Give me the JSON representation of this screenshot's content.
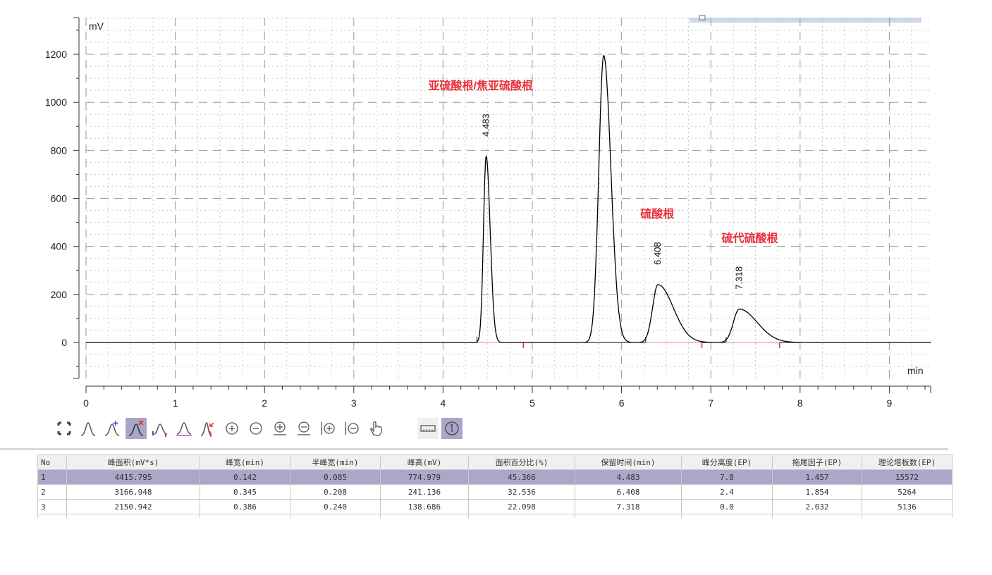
{
  "chart_data": {
    "type": "line",
    "xlabel": "min",
    "ylabel": "mV",
    "xlim": [
      0,
      9.47
    ],
    "ylim": [
      -150,
      1350
    ],
    "xticks": [
      0,
      1,
      2,
      3,
      4,
      5,
      6,
      7,
      8,
      9
    ],
    "yticks": [
      0,
      200,
      400,
      600,
      800,
      1000,
      1200
    ],
    "grid": true,
    "line_color": "#000000",
    "annotation_color": "#e8303a",
    "peaks": [
      {
        "rt": 4.483,
        "height": 775,
        "start": 4.38,
        "end": 4.9,
        "label": "4.483",
        "name": "亚硫酸根/焦亚硫酸根",
        "sl": 0.03,
        "sr": 0.045
      },
      {
        "rt": 5.8,
        "height": 1195,
        "sl": 0.055,
        "sr": 0.08
      },
      {
        "rt": 6.408,
        "height": 241,
        "start": 6.27,
        "end": 6.9,
        "label": "6.408",
        "name": "硫酸根",
        "sl": 0.06,
        "sr": 0.17
      },
      {
        "rt": 7.318,
        "height": 139,
        "start": 7.17,
        "end": 7.77,
        "label": "7.318",
        "name": "硫代硫酸根",
        "sl": 0.065,
        "sr": 0.2
      }
    ]
  },
  "toolbar": {
    "icons": [
      "fit-view-icon",
      "peak-icon",
      "add-peak-icon",
      "delete-peak-icon",
      "split-peak-icon",
      "baseline-icon",
      "manual-integration-icon",
      "zoom-in-icon",
      "zoom-out-icon",
      "zoom-in-y-icon",
      "zoom-out-y-icon",
      "zoom-in-x-icon",
      "zoom-out-x-icon",
      "pan-hand-icon",
      "ruler-icon",
      "number-one-icon"
    ]
  },
  "table": {
    "headers": [
      "No",
      "峰面积(mV*s)",
      "峰宽(min)",
      "半峰宽(min)",
      "峰高(mV)",
      "面积百分比(%)",
      "保留时间(min)",
      "峰分离度(EP)",
      "拖尾因子(EP)",
      "理论塔板数(EP)"
    ],
    "rows": [
      [
        "1",
        "4415.795",
        "0.142",
        "0.085",
        "774.979",
        "45.366",
        "4.483",
        "7.8",
        "1.457",
        "15572"
      ],
      [
        "2",
        "3166.948",
        "0.345",
        "0.208",
        "241.136",
        "32.536",
        "6.408",
        "2.4",
        "1.854",
        "5264"
      ],
      [
        "3",
        "2150.942",
        "0.386",
        "0.240",
        "138.686",
        "22.098",
        "7.318",
        "0.0",
        "2.032",
        "5136"
      ]
    ]
  }
}
